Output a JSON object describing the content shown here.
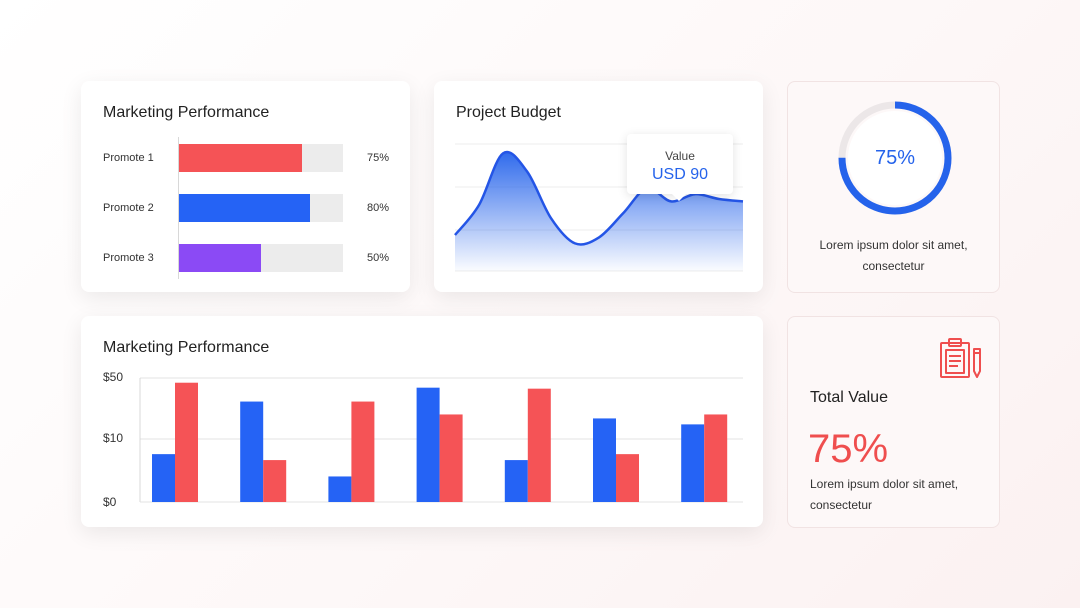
{
  "colors": {
    "red": "#f55356",
    "blue": "#2563f5",
    "purple": "#8b4af5",
    "accent_red": "#ef4e4e"
  },
  "marketing_top": {
    "title": "Marketing Performance",
    "items": [
      {
        "label": "Promote 1",
        "value": 75,
        "value_label": "75%",
        "color": "#f55356"
      },
      {
        "label": "Promote 2",
        "value": 80,
        "value_label": "80%",
        "color": "#2563f5"
      },
      {
        "label": "Promote 3",
        "value": 50,
        "value_label": "50%",
        "color": "#8b4af5"
      }
    ]
  },
  "budget": {
    "title": "Project Budget",
    "tooltip_label": "Value",
    "tooltip_value": "USD 90"
  },
  "donut": {
    "value": 75,
    "label": "75%",
    "desc_line1": "Lorem ipsum dolor sit amet,",
    "desc_line2": "consectetur"
  },
  "marketing_bottom": {
    "title": "Marketing Performance"
  },
  "total": {
    "title": "Total Value",
    "value": "75%",
    "desc_line1": "Lorem ipsum dolor sit amet,",
    "desc_line2": "consectetur",
    "icon": "clipboard-pencil-icon"
  },
  "chart_data": [
    {
      "type": "bar",
      "orientation": "horizontal",
      "title": "Marketing Performance",
      "categories": [
        "Promote 1",
        "Promote 2",
        "Promote 3"
      ],
      "values": [
        75,
        80,
        50
      ],
      "value_labels": [
        "75%",
        "80%",
        "50%"
      ],
      "xlim": [
        0,
        100
      ]
    },
    {
      "type": "area",
      "title": "Project Budget",
      "x": [
        0,
        1,
        2,
        3,
        4,
        5,
        6,
        7,
        8,
        9,
        10,
        11,
        12
      ],
      "y": [
        30,
        55,
        98,
        83,
        44,
        23,
        28,
        48,
        69,
        58,
        64,
        60,
        58
      ],
      "ylim": [
        0,
        110
      ],
      "grid": true,
      "annotation": {
        "label": "Value",
        "text": "USD 90"
      }
    },
    {
      "type": "pie",
      "variant": "donut",
      "values": [
        75,
        25
      ],
      "label": "75%"
    },
    {
      "type": "bar",
      "title": "Marketing Performance",
      "y_ticks": [
        "$50",
        "$10",
        "$0"
      ],
      "ylim": [
        0,
        50
      ],
      "grid": true,
      "series": [
        {
          "color": "#2563f5",
          "values": [
            19.3,
            40.5,
            10.3,
            46.1,
            16.9,
            33.7,
            31.3
          ]
        },
        {
          "color": "#f55356",
          "values": [
            48.1,
            16.9,
            40.5,
            35.3,
            45.7,
            19.3,
            35.3
          ]
        }
      ]
    }
  ]
}
